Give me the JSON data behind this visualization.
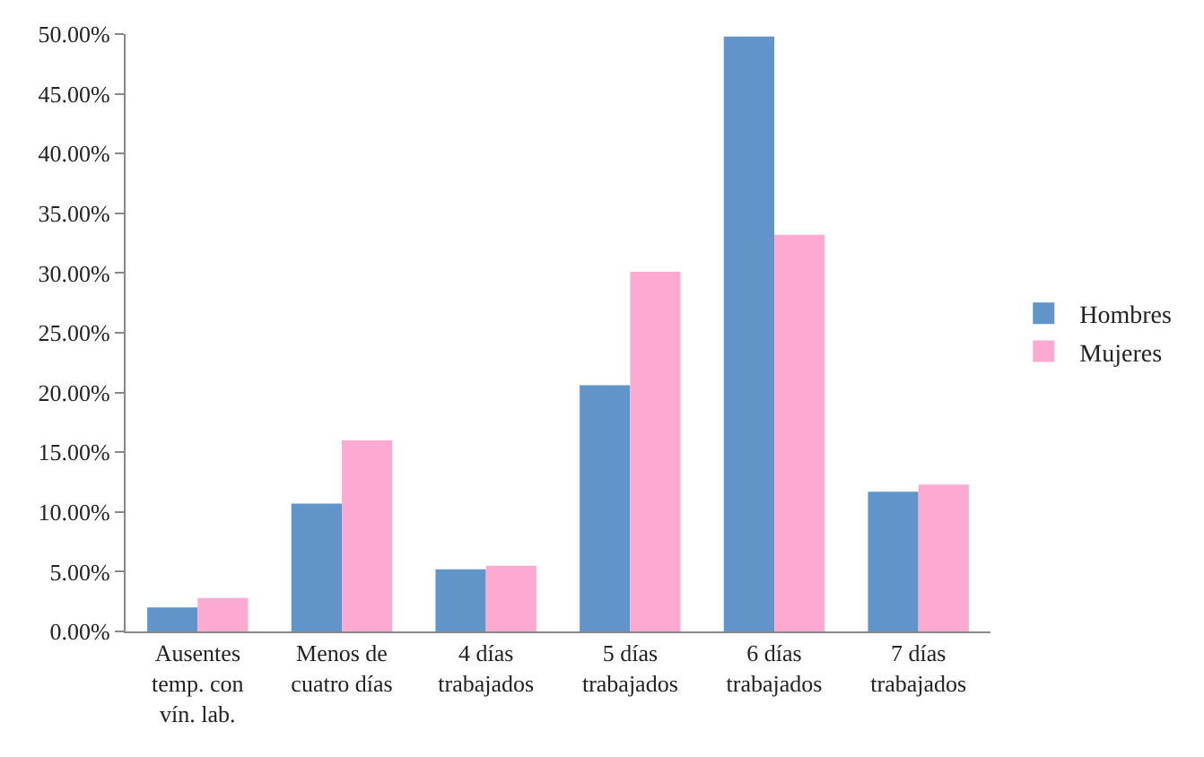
{
  "chart_data": {
    "type": "bar",
    "categories": [
      "Ausentes\ntemp. con\nvín. lab.",
      "Menos de\ncuatro días",
      "4 días\ntrabajados",
      "5 días\ntrabajados",
      "6 días\ntrabajados",
      "7 días\ntrabajados"
    ],
    "series": [
      {
        "name": "Hombres",
        "color": "#6194c8",
        "values": [
          2.0,
          10.7,
          5.2,
          20.6,
          49.8,
          11.7
        ]
      },
      {
        "name": "Mujeres",
        "color": "#fdaad3",
        "values": [
          2.8,
          16.0,
          5.5,
          30.1,
          33.2,
          12.3
        ]
      }
    ],
    "ylim": [
      0,
      50
    ],
    "yticks": [
      {
        "value": 0,
        "label": "0.00%"
      },
      {
        "value": 5,
        "label": "5.00%"
      },
      {
        "value": 10,
        "label": "10.00%"
      },
      {
        "value": 15,
        "label": "15.00%"
      },
      {
        "value": 20,
        "label": "20.00%"
      },
      {
        "value": 25,
        "label": "25.00%"
      },
      {
        "value": 30,
        "label": "30.00%"
      },
      {
        "value": 35,
        "label": "35.00%"
      },
      {
        "value": 40,
        "label": "40.00%"
      },
      {
        "value": 45,
        "label": "45.00%"
      },
      {
        "value": 50,
        "label": "50.00%"
      }
    ],
    "legend": "right"
  }
}
